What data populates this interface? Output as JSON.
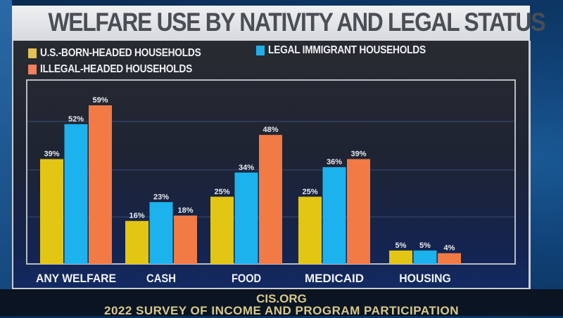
{
  "chart_data": {
    "type": "bar",
    "title": "WELFARE USE BY NATIVITY AND LEGAL STATUS",
    "xlabel": "",
    "ylabel": "",
    "ylim": [
      0,
      65
    ],
    "grid": true,
    "legend_position": "top-left",
    "categories": [
      "ANY WELFARE",
      "CASH",
      "FOOD",
      "MEDICAID",
      "HOUSING"
    ],
    "series": [
      {
        "name": "U.S.-BORN-HEADED HOUSEHOLDS",
        "color": "#e3c514",
        "values": [
          39,
          16,
          25,
          25,
          5
        ],
        "labels": [
          "39%",
          "16%",
          "25%",
          "25%",
          "5%"
        ]
      },
      {
        "name": "LEGAL IMMIGRANT HOUSEHOLDS",
        "color": "#1cb2ee",
        "values": [
          52,
          23,
          34,
          36,
          5
        ],
        "labels": [
          "52%",
          "23%",
          "34%",
          "36%",
          "5%"
        ]
      },
      {
        "name": "ILLEGAL-HEADED HOUSEHOLDS",
        "color": "#f27a45",
        "values": [
          59,
          18,
          48,
          39,
          4
        ],
        "labels": [
          "59%",
          "18%",
          "48%",
          "39%",
          "4%"
        ]
      }
    ]
  },
  "legend_swatch_colors": [
    "#e5c153",
    "#1fb0ea",
    "#f08060"
  ],
  "footer": {
    "source": "CIS.ORG",
    "survey": "2022 SURVEY OF INCOME AND PROGRAM PARTICIPATION"
  }
}
